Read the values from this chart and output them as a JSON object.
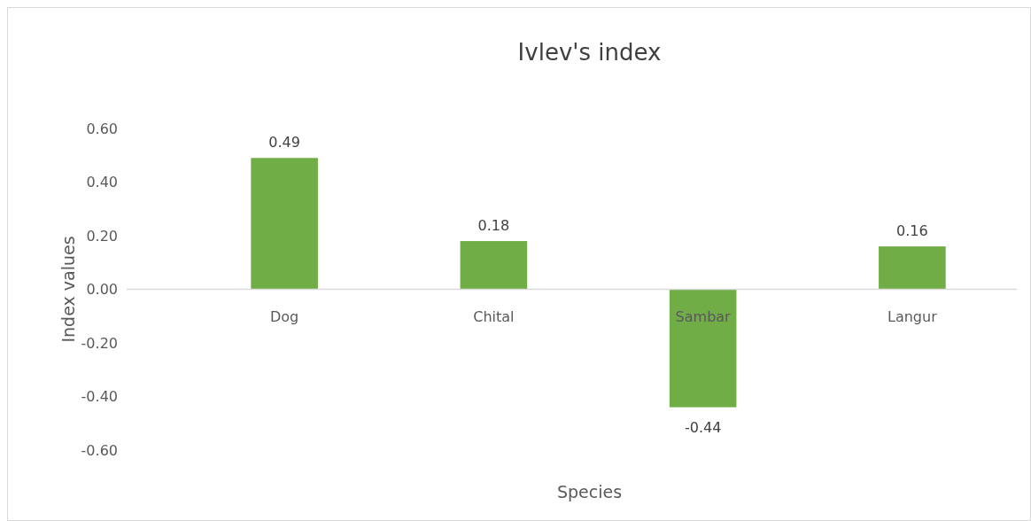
{
  "chart_data": {
    "type": "bar",
    "title": "Ivlev's index",
    "xlabel": "Species",
    "ylabel": "Index values",
    "categories": [
      "Dog",
      "Chital",
      "Sambar",
      "Langur"
    ],
    "values": [
      0.49,
      0.18,
      -0.44,
      0.16
    ],
    "color": "#70ad47",
    "ylim": [
      -0.6,
      0.6
    ],
    "yticks": [
      {
        "value": -0.6,
        "label": "-0.60"
      },
      {
        "value": -0.4,
        "label": "-0.40"
      },
      {
        "value": -0.2,
        "label": "-0.20"
      },
      {
        "value": 0,
        "label": "0.00"
      },
      {
        "value": 0.2,
        "label": "0.20"
      },
      {
        "value": 0.4,
        "label": "0.40"
      },
      {
        "value": 0.6,
        "label": "0.60"
      }
    ],
    "data_labels": true,
    "grid": false
  }
}
